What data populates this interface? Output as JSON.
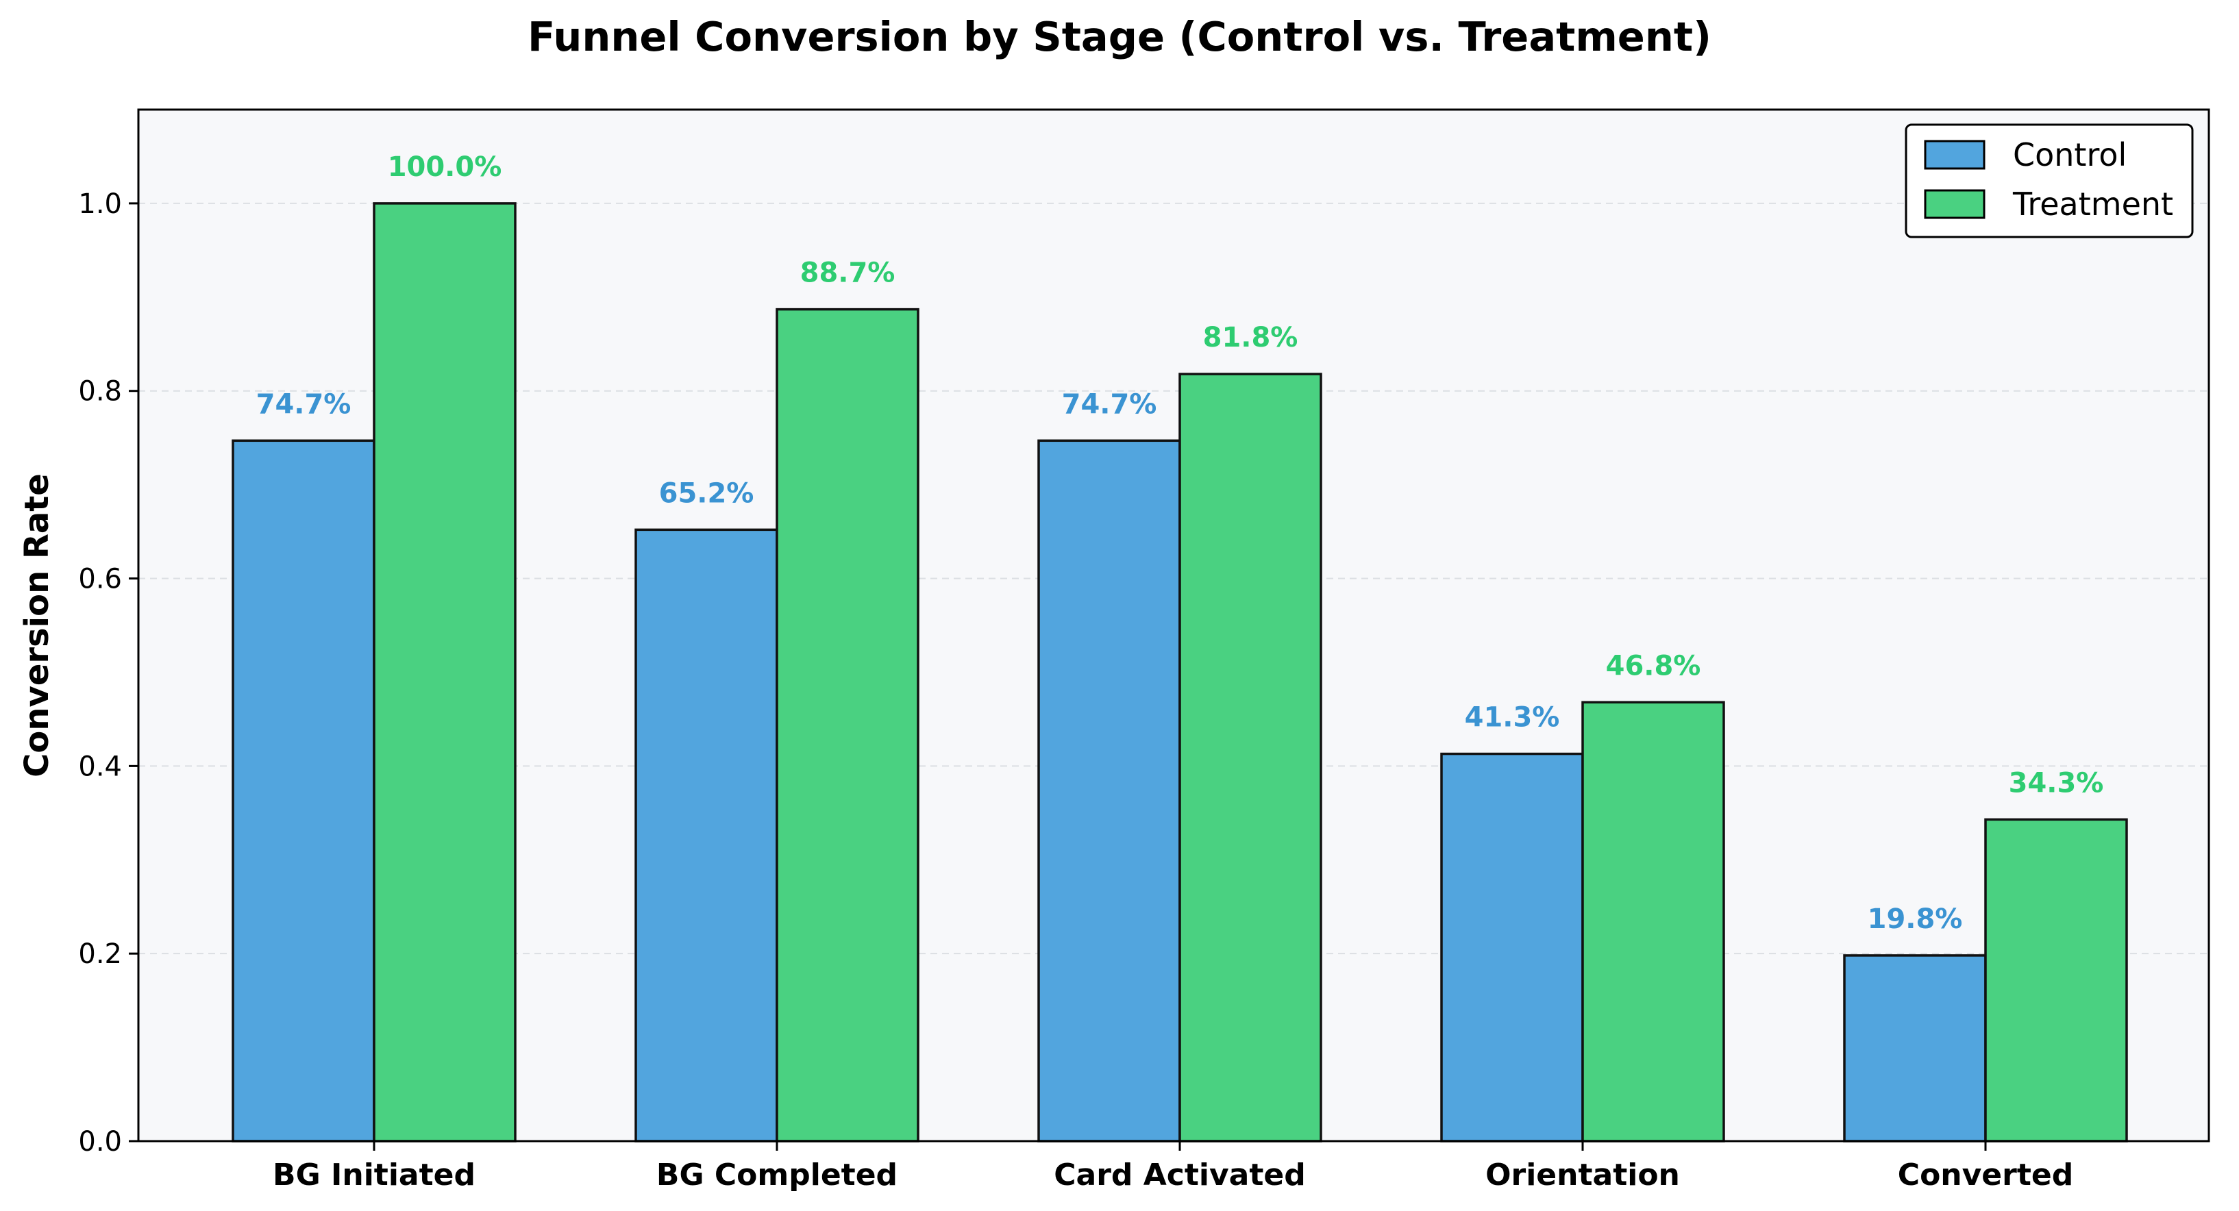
{
  "chart_data": {
    "type": "bar",
    "title": "Funnel Conversion by Stage (Control vs. Treatment)",
    "xlabel": "",
    "ylabel": "Conversion Rate",
    "ylim": [
      0,
      1.1
    ],
    "yticks": [
      0.0,
      0.2,
      0.4,
      0.6,
      0.8,
      1.0
    ],
    "ytick_labels": [
      "0.0",
      "0.2",
      "0.4",
      "0.6",
      "0.8",
      "1.0"
    ],
    "grid": "horizontal dashed",
    "legend_position": "top-right",
    "categories": [
      "BG Initiated",
      "BG Completed",
      "Card Activated",
      "Orientation",
      "Converted"
    ],
    "series": [
      {
        "name": "Control",
        "color": "#52a5de",
        "label_color": "#3a93d2",
        "values": [
          0.747,
          0.652,
          0.747,
          0.413,
          0.198
        ],
        "labels": [
          "74.7%",
          "65.2%",
          "74.7%",
          "41.3%",
          "19.8%"
        ]
      },
      {
        "name": "Treatment",
        "color": "#4ad181",
        "label_color": "#2ecc71",
        "values": [
          1.0,
          0.887,
          0.818,
          0.468,
          0.343
        ],
        "labels": [
          "100.0%",
          "88.7%",
          "81.8%",
          "46.8%",
          "34.3%"
        ]
      }
    ]
  }
}
